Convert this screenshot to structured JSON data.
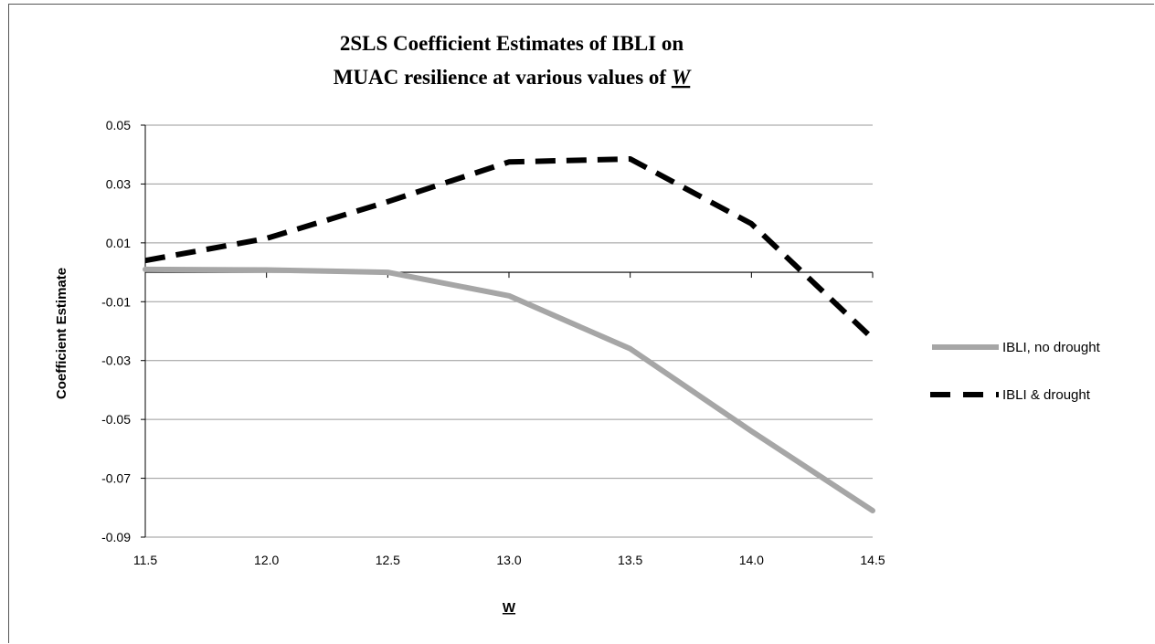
{
  "chart_data": {
    "type": "line",
    "title_line1": "2SLS Coefficient Estimates of IBLI on",
    "title_line2_prefix": "MUAC resilience at various values of ",
    "title_line2_var": "W",
    "xlabel": "W",
    "ylabel": "Coefficient  Estimate",
    "x": [
      11.5,
      12.0,
      12.5,
      13.0,
      13.5,
      14.0,
      14.5
    ],
    "x_tick_labels": [
      "11.5",
      "12.0",
      "12.5",
      "13.0",
      "13.5",
      "14.0",
      "14.5"
    ],
    "y_ticks": [
      0.05,
      0.03,
      0.01,
      -0.01,
      -0.03,
      -0.05,
      -0.07,
      -0.09
    ],
    "y_tick_labels": [
      "0.05",
      "0.03",
      "0.01",
      "-0.01",
      "-0.03",
      "-0.05",
      "-0.07",
      "-0.09"
    ],
    "xlim": [
      11.5,
      14.5
    ],
    "ylim": [
      -0.09,
      0.05
    ],
    "grid": true,
    "legend_position": "right",
    "series": [
      {
        "name": "IBLI, no drought",
        "style": "solid",
        "color": "#a6a6a6",
        "values": [
          0.001,
          0.0008,
          0.0,
          -0.008,
          -0.026,
          -0.054,
          -0.081
        ]
      },
      {
        "name": "IBLI & drought",
        "style": "dashed",
        "color": "#000000",
        "values": [
          0.004,
          0.0115,
          0.024,
          0.0375,
          0.0385,
          0.0165,
          -0.0225
        ]
      }
    ]
  }
}
